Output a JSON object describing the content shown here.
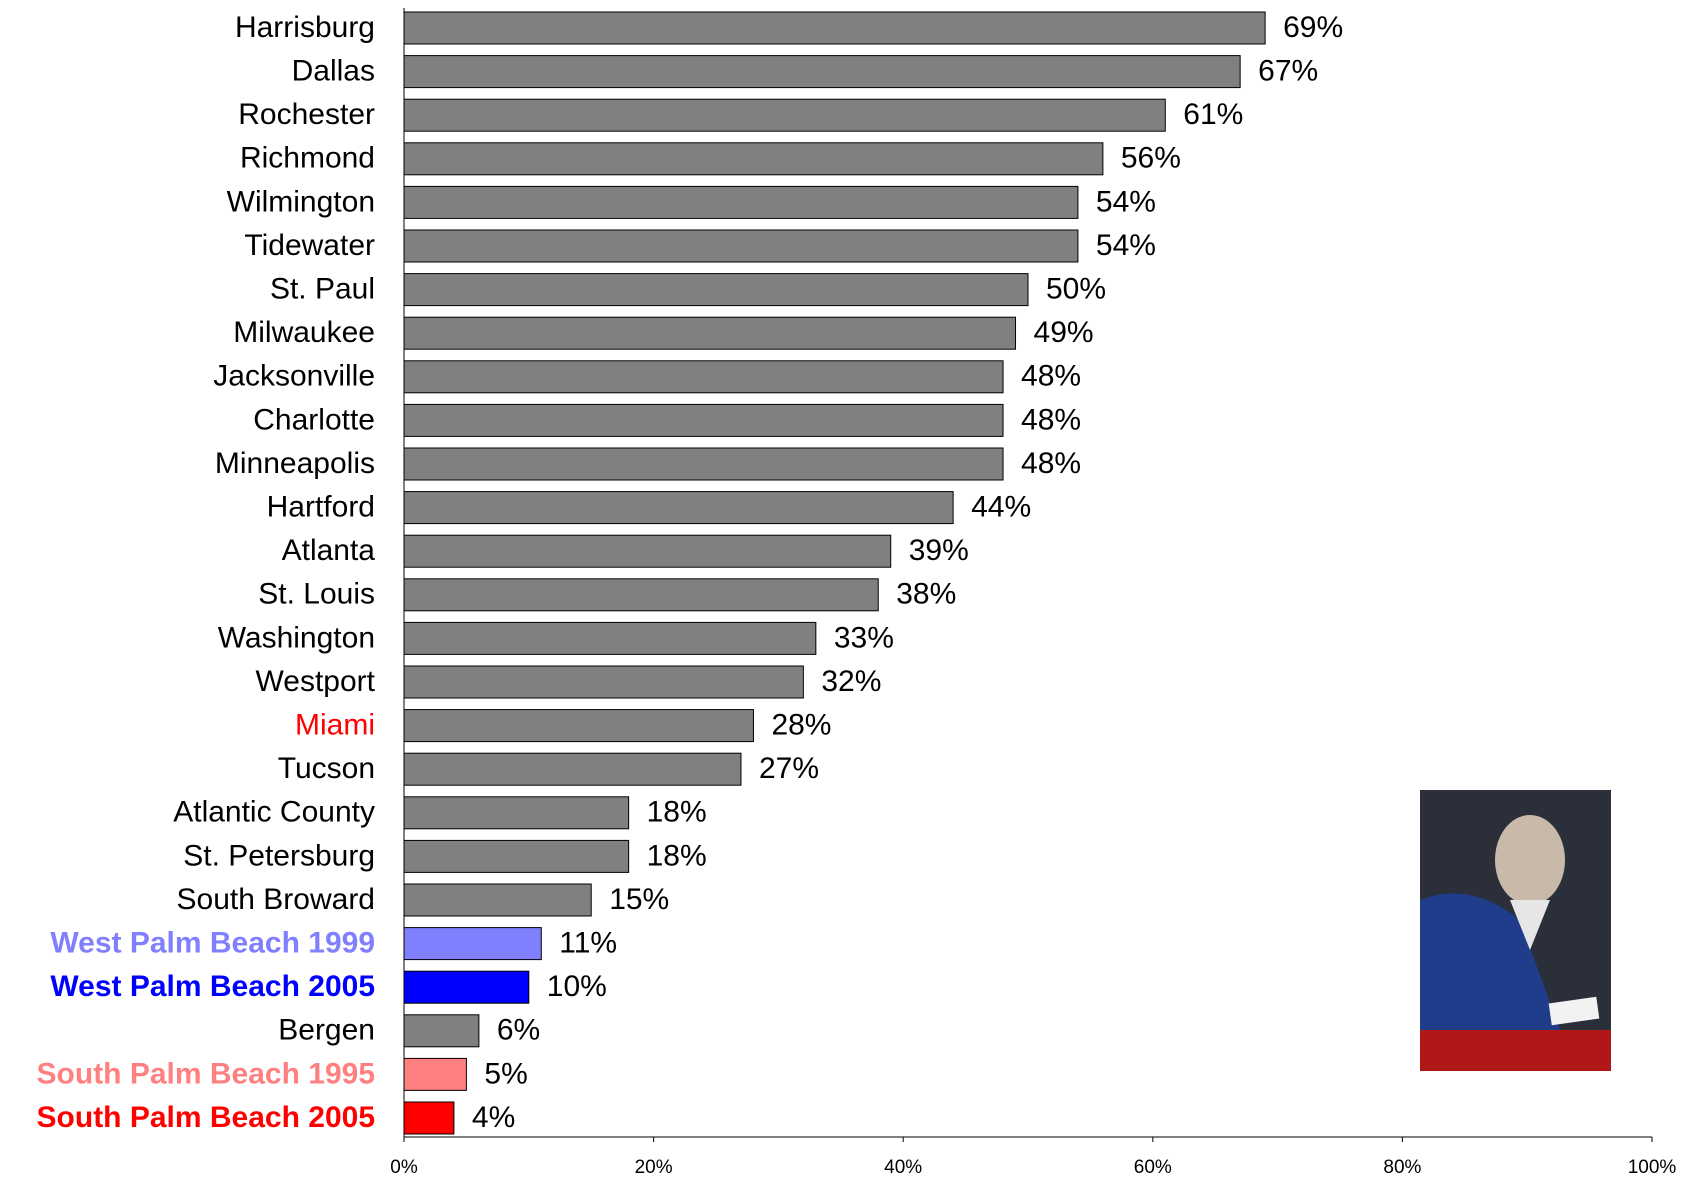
{
  "chart_data": {
    "type": "barh",
    "categories": [
      "Harrisburg",
      "Dallas",
      "Rochester",
      "Richmond",
      "Wilmington",
      "Tidewater",
      "St. Paul",
      "Milwaukee",
      "Jacksonville",
      "Charlotte",
      "Minneapolis",
      "Hartford",
      "Atlanta",
      "St. Louis",
      "Washington",
      "Westport",
      "Miami",
      "Tucson",
      "Atlantic County",
      "St. Petersburg",
      "South Broward",
      "West Palm Beach 1999",
      "West Palm Beach 2005",
      "Bergen",
      "South Palm Beach 1995",
      "South Palm Beach 2005"
    ],
    "values": [
      69,
      67,
      61,
      56,
      54,
      54,
      50,
      49,
      48,
      48,
      48,
      44,
      39,
      38,
      33,
      32,
      28,
      27,
      18,
      18,
      15,
      11,
      10,
      6,
      5,
      4
    ],
    "value_labels": [
      "69%",
      "67%",
      "61%",
      "56%",
      "54%",
      "54%",
      "50%",
      "49%",
      "48%",
      "48%",
      "48%",
      "44%",
      "39%",
      "38%",
      "33%",
      "32%",
      "28%",
      "27%",
      "18%",
      "18%",
      "15%",
      "11%",
      "10%",
      "6%",
      "5%",
      "4%"
    ],
    "colors": [
      "#808080",
      "#808080",
      "#808080",
      "#808080",
      "#808080",
      "#808080",
      "#808080",
      "#808080",
      "#808080",
      "#808080",
      "#808080",
      "#808080",
      "#808080",
      "#808080",
      "#808080",
      "#808080",
      "#808080",
      "#808080",
      "#808080",
      "#808080",
      "#808080",
      "#8080ff",
      "#0000ff",
      "#808080",
      "#ff8080",
      "#ff0000"
    ],
    "label_colors": [
      "#000000",
      "#000000",
      "#000000",
      "#000000",
      "#000000",
      "#000000",
      "#000000",
      "#000000",
      "#000000",
      "#000000",
      "#000000",
      "#000000",
      "#000000",
      "#000000",
      "#000000",
      "#000000",
      "#ff0000",
      "#000000",
      "#000000",
      "#000000",
      "#000000",
      "#8080ff",
      "#0000ff",
      "#000000",
      "#ff8080",
      "#ff0000"
    ],
    "bold_labels": [
      false,
      false,
      false,
      false,
      false,
      false,
      false,
      false,
      false,
      false,
      false,
      false,
      false,
      false,
      false,
      false,
      false,
      false,
      false,
      false,
      false,
      true,
      true,
      false,
      true,
      true
    ],
    "xlim": [
      0,
      100
    ],
    "xticks": [
      {
        "value": 0,
        "label": "0%"
      },
      {
        "value": 20,
        "label": "20%"
      },
      {
        "value": 40,
        "label": "40%"
      },
      {
        "value": 60,
        "label": "60%"
      },
      {
        "value": 80,
        "label": "80%"
      },
      {
        "value": 100,
        "label": "100%"
      }
    ],
    "grid": false
  }
}
